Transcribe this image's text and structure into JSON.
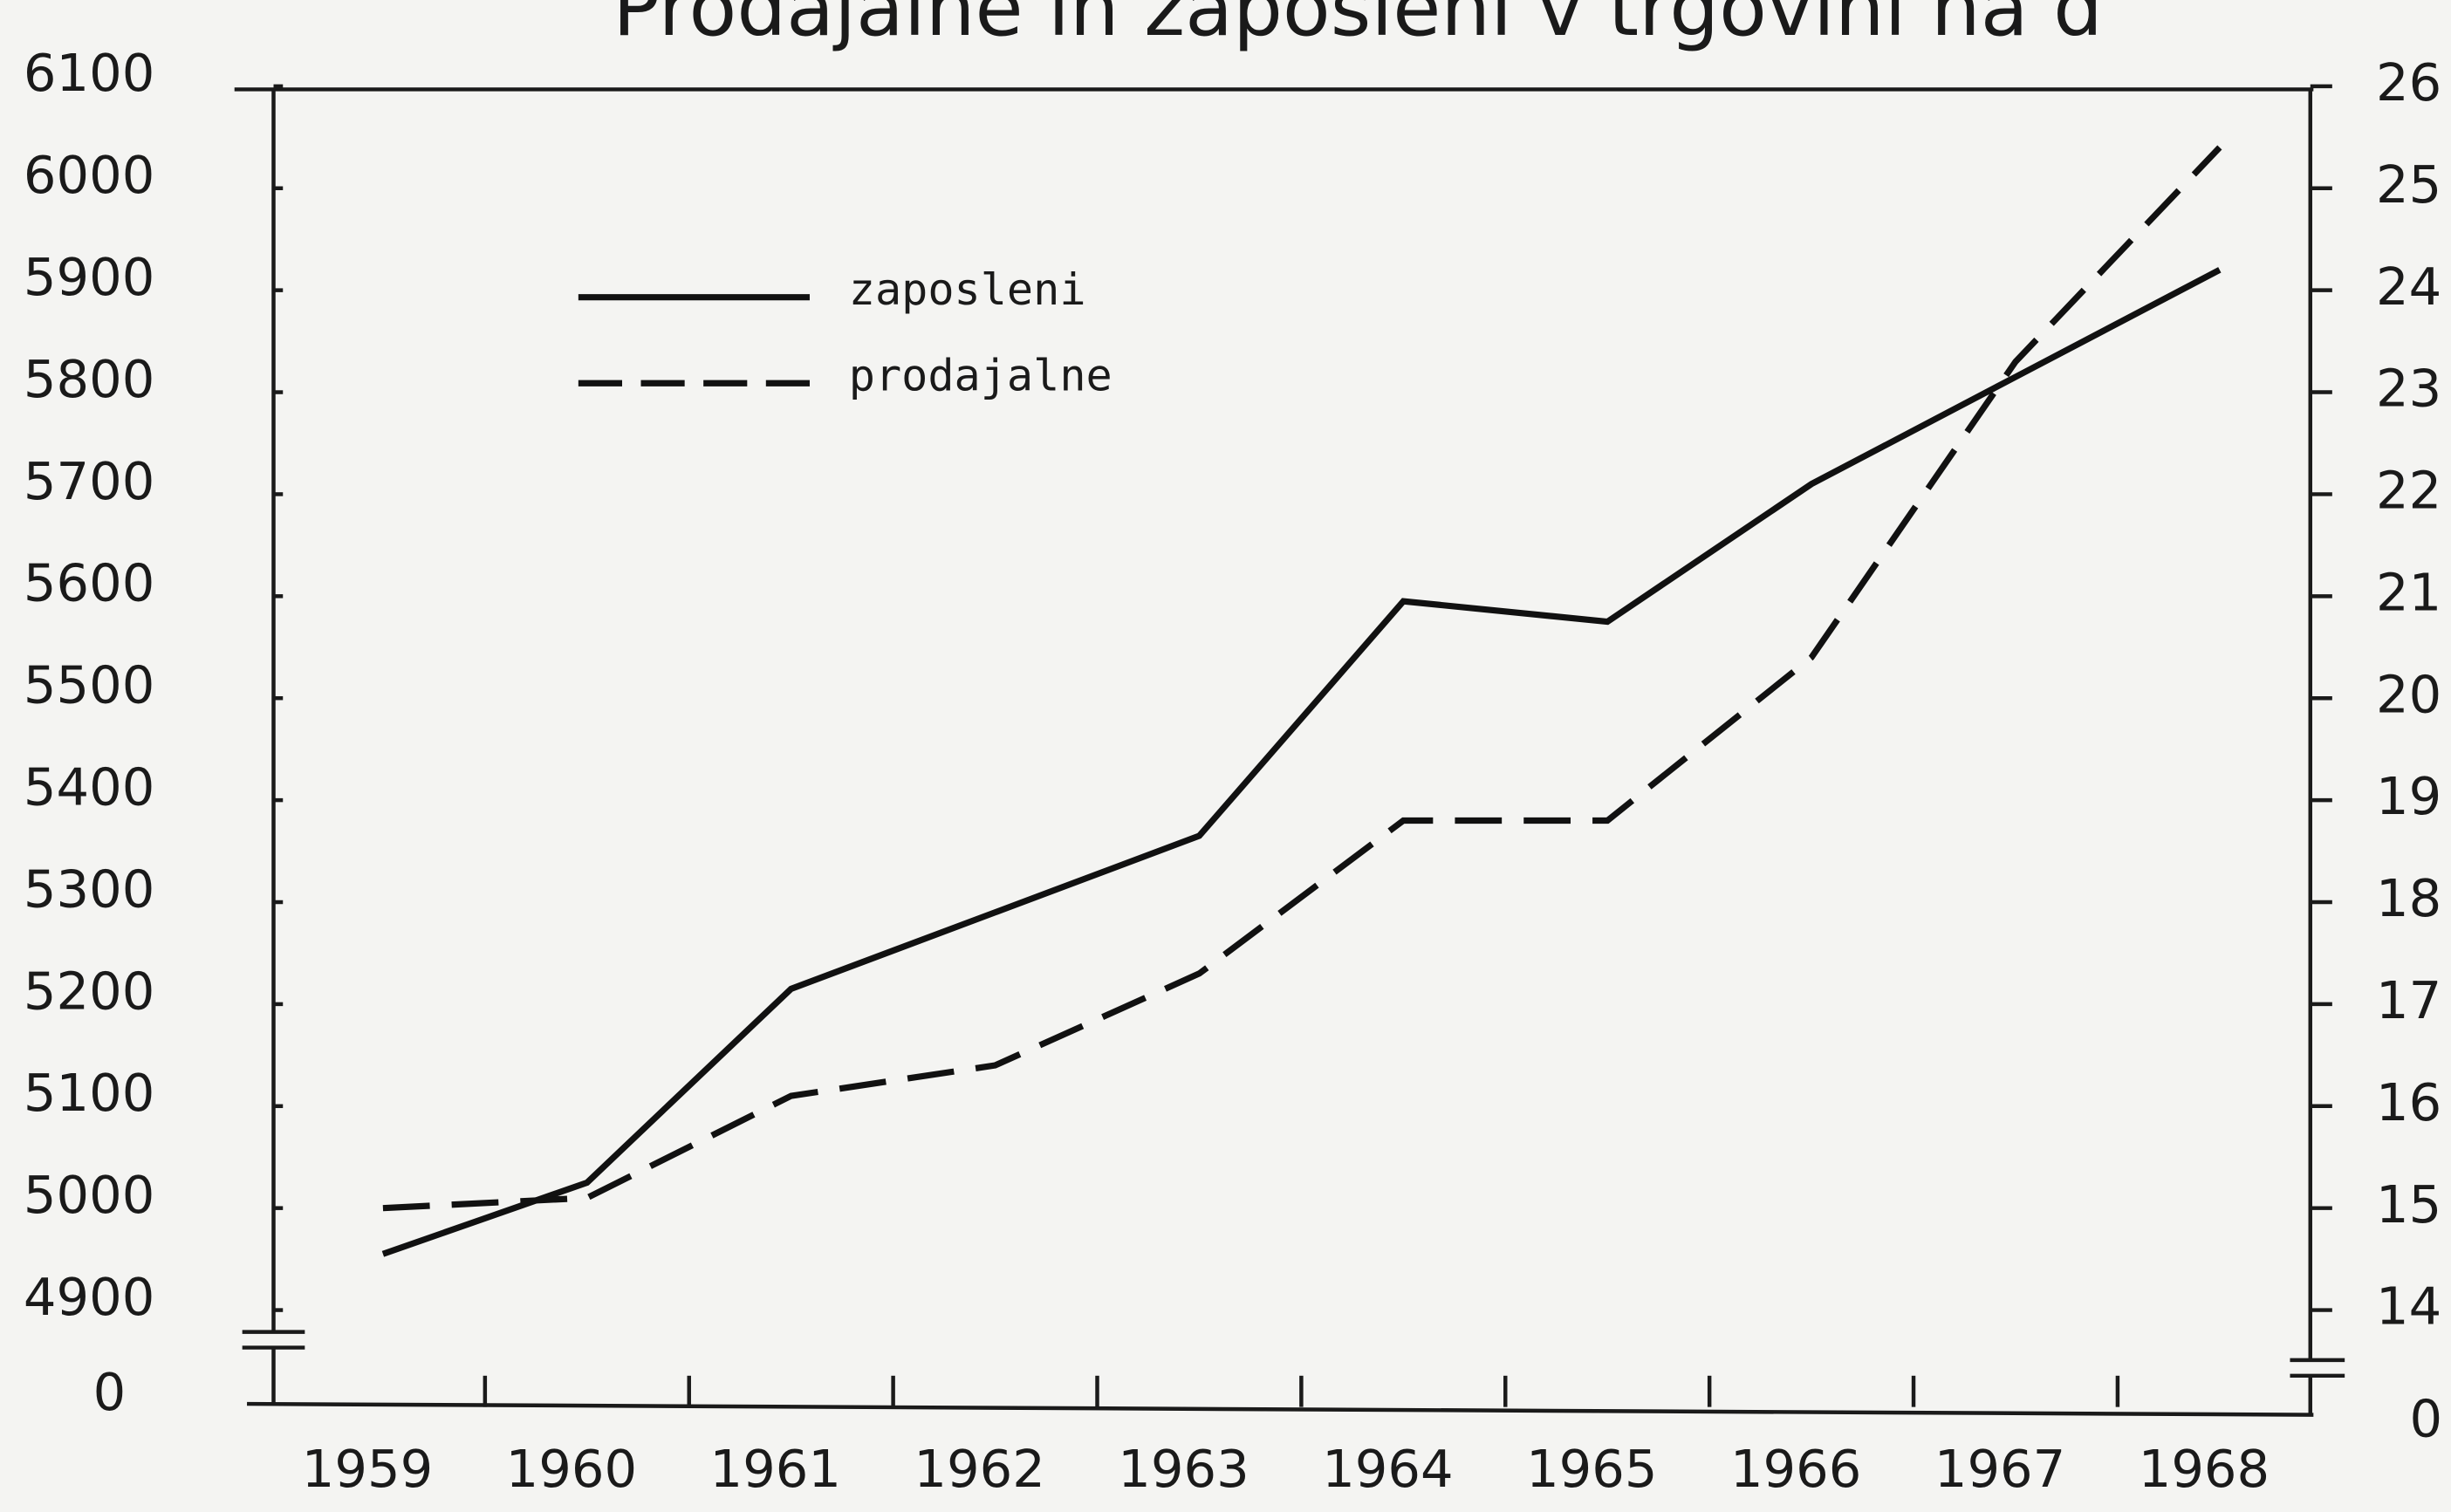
{
  "chart_data": {
    "type": "line",
    "title": "Prodajalne in zaposleni v trgovini na d",
    "categories": [
      "1959",
      "1960",
      "1961",
      "1962",
      "1963",
      "1964",
      "1965",
      "1966",
      "1967",
      "1968"
    ],
    "series": [
      {
        "name": "zaposleni",
        "color": "#111111",
        "linestyle": "solid",
        "axis": "y",
        "values": [
          4955,
          5025,
          5215,
          5290,
          5365,
          5595,
          5575,
          5710,
          5815,
          5920
        ]
      },
      {
        "name": "prodajalne",
        "color": "#111111",
        "linestyle": "dashed",
        "axis": "y2",
        "values": [
          15.0,
          15.1,
          16.1,
          16.4,
          17.3,
          18.8,
          18.8,
          20.4,
          23.3,
          25.4
        ]
      }
    ],
    "ylim": [
      4900,
      6100
    ],
    "yticks": [
      4900,
      5000,
      5100,
      5200,
      5300,
      5400,
      5500,
      5600,
      5700,
      5800,
      5900,
      6000,
      6100
    ],
    "y2lim": [
      14,
      26
    ],
    "y2ticks": [
      14,
      15,
      16,
      17,
      18,
      19,
      20,
      21,
      22,
      23,
      24,
      25,
      26
    ],
    "ybreak": 0,
    "y2break": 0,
    "legend": "upper left"
  }
}
